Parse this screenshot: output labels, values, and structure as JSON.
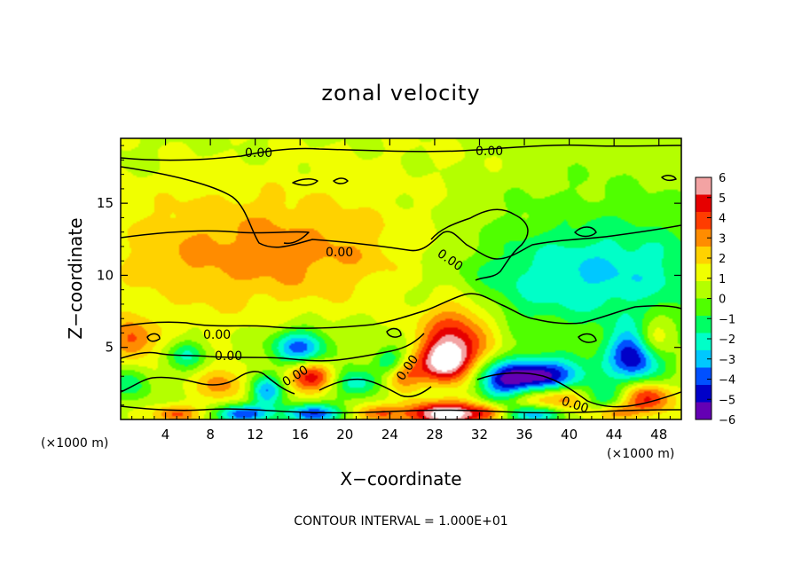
{
  "chart_data": {
    "type": "heatmap",
    "title": "zonal velocity",
    "xlabel": "X−coordinate",
    "ylabel": "Z−coordinate",
    "x_unit_left": "(×1000 m)",
    "x_unit_right": "(×1000 m)",
    "xlim": [
      0,
      50
    ],
    "ylim": [
      0,
      19.5
    ],
    "x_ticks": [
      4,
      8,
      12,
      16,
      20,
      24,
      28,
      32,
      36,
      40,
      44,
      48
    ],
    "y_ticks": [
      5,
      10,
      15
    ],
    "colorbar": {
      "range": [
        -6,
        6
      ],
      "ticks": [
        6,
        5,
        4,
        3,
        2,
        1,
        0,
        -1,
        -2,
        -3,
        -4,
        -5,
        -6
      ],
      "tick_labels": [
        "6",
        "5",
        "4",
        "3",
        "2",
        "1",
        "0",
        "−1",
        "−2",
        "−3",
        "−4",
        "−5",
        "−6"
      ],
      "colors": [
        "#f3a3a3",
        "#e60000",
        "#ff3c00",
        "#ff8c00",
        "#ffd200",
        "#f0ff00",
        "#b4ff00",
        "#50ff00",
        "#00ff64",
        "#00ffc8",
        "#00c8ff",
        "#0050ff",
        "#0000c8",
        "#6400b4"
      ]
    },
    "contour_level_label": "0.00",
    "contour_interval": "CONTOUR INTERVAL = 1.000E+01",
    "field_sources": [
      {
        "x": 10,
        "z": 13,
        "v": 1.2,
        "sx": 9,
        "sz": 3
      },
      {
        "x": 20,
        "z": 11,
        "v": 1.5,
        "sx": 8,
        "sz": 2.5
      },
      {
        "x": 6,
        "z": 10,
        "v": 0.8,
        "sx": 6,
        "sz": 3
      },
      {
        "x": 37,
        "z": 9.5,
        "v": -2.2,
        "sx": 8,
        "sz": 2.5
      },
      {
        "x": 46,
        "z": 10.5,
        "v": -1.8,
        "sx": 6,
        "sz": 2.5
      },
      {
        "x": 40,
        "z": 16,
        "v": -0.6,
        "sx": 8,
        "sz": 3
      },
      {
        "x": 30,
        "z": 18,
        "v": 0.4,
        "sx": 10,
        "sz": 2
      },
      {
        "x": 30,
        "z": 6,
        "v": 4.0,
        "sx": 2.4,
        "sz": 1.8
      },
      {
        "x": 29,
        "z": 4,
        "v": 5.5,
        "sx": 1.6,
        "sz": 1.0
      },
      {
        "x": 1,
        "z": 5.5,
        "v": 3.0,
        "sx": 1.4,
        "sz": 1.0
      },
      {
        "x": 47.5,
        "z": 5.5,
        "v": 3.5,
        "sx": 1.2,
        "sz": 1.0
      },
      {
        "x": 16,
        "z": 5,
        "v": -4.5,
        "sx": 1.8,
        "sz": 0.9
      },
      {
        "x": 17,
        "z": 3,
        "v": 4.0,
        "sx": 1.5,
        "sz": 0.8
      },
      {
        "x": 9,
        "z": 2.5,
        "v": 2.5,
        "sx": 1.5,
        "sz": 0.8
      },
      {
        "x": 13,
        "z": 2,
        "v": -4.0,
        "sx": 1.0,
        "sz": 0.8
      },
      {
        "x": 21,
        "z": 2.5,
        "v": -3.0,
        "sx": 1.5,
        "sz": 0.7
      },
      {
        "x": 25,
        "z": 3,
        "v": 3.0,
        "sx": 1.2,
        "sz": 0.8
      },
      {
        "x": 24,
        "z": 4,
        "v": -3.0,
        "sx": 1.0,
        "sz": 0.7
      },
      {
        "x": 37,
        "z": 3,
        "v": -6.5,
        "sx": 3.2,
        "sz": 0.9
      },
      {
        "x": 39,
        "z": 1.5,
        "v": 3.5,
        "sx": 3.0,
        "sz": 0.7
      },
      {
        "x": 46,
        "z": 4.5,
        "v": -6.0,
        "sx": 1.8,
        "sz": 1.3
      },
      {
        "x": 47,
        "z": 1.5,
        "v": 4.0,
        "sx": 1.5,
        "sz": 0.8
      },
      {
        "x": 34,
        "z": 2,
        "v": -2.5,
        "sx": 1.5,
        "sz": 1.0
      },
      {
        "x": 43,
        "z": 1.5,
        "v": -3.0,
        "sx": 1.5,
        "sz": 0.7
      },
      {
        "x": 11,
        "z": 0.4,
        "v": -5.0,
        "sx": 1.5,
        "sz": 0.45
      },
      {
        "x": 17,
        "z": 0.4,
        "v": -5.0,
        "sx": 1.8,
        "sz": 0.45
      },
      {
        "x": 29,
        "z": 0.4,
        "v": 6.5,
        "sx": 2.2,
        "sz": 0.6
      },
      {
        "x": 37,
        "z": 0.4,
        "v": -4.0,
        "sx": 2.0,
        "sz": 0.45
      },
      {
        "x": 5,
        "z": 0.4,
        "v": 3.0,
        "sx": 1.5,
        "sz": 0.45
      },
      {
        "x": 23,
        "z": 0.4,
        "v": 3.0,
        "sx": 1.5,
        "sz": 0.45
      },
      {
        "x": 33,
        "z": 0.5,
        "v": 3.0,
        "sx": 1.2,
        "sz": 0.45
      },
      {
        "x": 44,
        "z": 0.5,
        "v": 2.5,
        "sx": 1.5,
        "sz": 0.45
      },
      {
        "x": 6,
        "z": 4.5,
        "v": -2.5,
        "sx": 1.2,
        "sz": 0.7
      },
      {
        "x": 1,
        "z": 2.5,
        "v": -2.0,
        "sx": 1.2,
        "sz": 0.8
      }
    ]
  }
}
